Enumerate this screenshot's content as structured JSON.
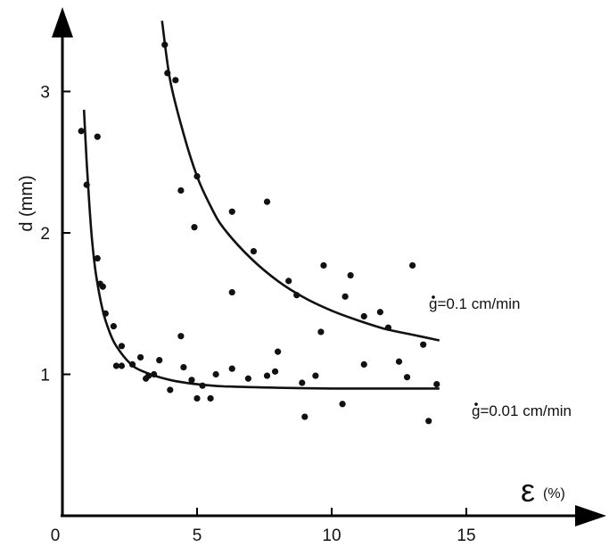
{
  "chart_data": {
    "type": "scatter",
    "title": "",
    "xlabel": "ε",
    "xlabel_unit": "(%)",
    "ylabel": "d (mm)",
    "xlim": [
      0,
      19
    ],
    "ylim": [
      0,
      3.5
    ],
    "xticks": [
      "0",
      "5",
      "10",
      "15"
    ],
    "yticks": [
      "1",
      "2",
      "3"
    ],
    "grid": false,
    "legend": "none",
    "series": [
      {
        "label": "g=0.1 cm/min",
        "fit_curve": [
          [
            3.7,
            3.5
          ],
          [
            4.0,
            3.08
          ],
          [
            4.5,
            2.7
          ],
          [
            5.0,
            2.4
          ],
          [
            5.5,
            2.19
          ],
          [
            6.0,
            2.03
          ],
          [
            7.0,
            1.82
          ],
          [
            8.0,
            1.66
          ],
          [
            9.0,
            1.54
          ],
          [
            10.0,
            1.45
          ],
          [
            11.0,
            1.38
          ],
          [
            12.0,
            1.32
          ],
          [
            13.0,
            1.28
          ],
          [
            14.0,
            1.24
          ]
        ],
        "points": [
          [
            3.8,
            3.33
          ],
          [
            3.9,
            3.13
          ],
          [
            4.2,
            3.08
          ],
          [
            4.4,
            2.3
          ],
          [
            5.0,
            2.4
          ],
          [
            4.9,
            2.04
          ],
          [
            6.3,
            2.15
          ],
          [
            7.6,
            2.22
          ],
          [
            7.1,
            1.87
          ],
          [
            8.4,
            1.66
          ],
          [
            8.7,
            1.56
          ],
          [
            9.7,
            1.77
          ],
          [
            10.7,
            1.7
          ],
          [
            10.5,
            1.55
          ],
          [
            11.2,
            1.41
          ],
          [
            11.8,
            1.44
          ],
          [
            13.0,
            1.77
          ],
          [
            12.1,
            1.33
          ],
          [
            13.4,
            1.21
          ],
          [
            9.6,
            1.3
          ],
          [
            6.3,
            1.58
          ],
          [
            4.4,
            1.27
          ]
        ]
      },
      {
        "label": "g=0.01 cm/min",
        "fit_curve": [
          [
            0.8,
            2.87
          ],
          [
            0.9,
            2.5
          ],
          [
            1.0,
            2.2
          ],
          [
            1.1,
            1.95
          ],
          [
            1.25,
            1.7
          ],
          [
            1.5,
            1.45
          ],
          [
            1.75,
            1.3
          ],
          [
            2.0,
            1.2
          ],
          [
            2.5,
            1.08
          ],
          [
            3.0,
            1.02
          ],
          [
            4.0,
            0.96
          ],
          [
            5.0,
            0.93
          ],
          [
            6.0,
            0.915
          ],
          [
            8.0,
            0.905
          ],
          [
            10.0,
            0.9
          ],
          [
            14.0,
            0.9
          ]
        ],
        "points": [
          [
            0.7,
            2.72
          ],
          [
            0.9,
            2.34
          ],
          [
            1.3,
            2.68
          ],
          [
            1.3,
            1.82
          ],
          [
            1.4,
            1.64
          ],
          [
            1.5,
            1.62
          ],
          [
            1.6,
            1.43
          ],
          [
            1.9,
            1.34
          ],
          [
            2.2,
            1.2
          ],
          [
            2.0,
            1.06
          ],
          [
            2.2,
            1.06
          ],
          [
            2.6,
            1.07
          ],
          [
            2.9,
            1.12
          ],
          [
            3.1,
            0.97
          ],
          [
            3.2,
            0.99
          ],
          [
            3.6,
            1.1
          ],
          [
            3.4,
            1.0
          ],
          [
            4.0,
            0.89
          ],
          [
            4.5,
            1.05
          ],
          [
            4.8,
            0.96
          ],
          [
            5.0,
            0.83
          ],
          [
            5.2,
            0.92
          ],
          [
            5.5,
            0.83
          ],
          [
            5.7,
            1.0
          ],
          [
            6.3,
            1.04
          ],
          [
            6.9,
            0.97
          ],
          [
            7.6,
            0.99
          ],
          [
            7.9,
            1.02
          ],
          [
            8.0,
            1.16
          ],
          [
            8.9,
            0.94
          ],
          [
            9.4,
            0.99
          ],
          [
            9.0,
            0.7
          ],
          [
            10.4,
            0.79
          ],
          [
            11.2,
            1.07
          ],
          [
            12.5,
            1.09
          ],
          [
            12.8,
            0.98
          ],
          [
            13.6,
            0.67
          ],
          [
            13.9,
            0.93
          ]
        ]
      }
    ]
  }
}
